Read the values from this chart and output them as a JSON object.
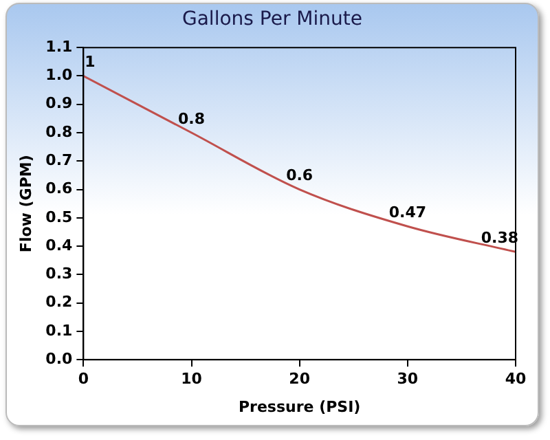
{
  "chart_data": {
    "type": "line",
    "title": "Gallons Per Minute",
    "xlabel": "Pressure (PSI)",
    "ylabel": "Flow (GPM)",
    "x": [
      0,
      10,
      20,
      30,
      40
    ],
    "series": [
      {
        "color": "#c0504d",
        "values": [
          1,
          0.8,
          0.6,
          0.47,
          0.38
        ]
      }
    ],
    "xlim": [
      0,
      40
    ],
    "xticks": [
      0,
      10,
      20,
      30,
      40
    ],
    "ylim": [
      0,
      1.1
    ],
    "yticks": [
      {
        "value": 0,
        "label": "0.0"
      },
      {
        "value": 0.1,
        "label": "0.1"
      },
      {
        "value": 0.2,
        "label": "0.2"
      },
      {
        "value": 0.3,
        "label": "0.3"
      },
      {
        "value": 0.4,
        "label": "0.4"
      },
      {
        "value": 0.5,
        "label": "0.5"
      },
      {
        "value": 0.6,
        "label": "0.6"
      },
      {
        "value": 0.7,
        "label": "0.7"
      },
      {
        "value": 0.8,
        "label": "0.8"
      },
      {
        "value": 0.9,
        "label": "0.9"
      },
      {
        "value": 1,
        "label": "1.0"
      },
      {
        "value": 1.1,
        "label": "1.1"
      }
    ],
    "grid": false,
    "legend": false,
    "marker": "none",
    "line_style": "solid",
    "data_labels": true
  }
}
